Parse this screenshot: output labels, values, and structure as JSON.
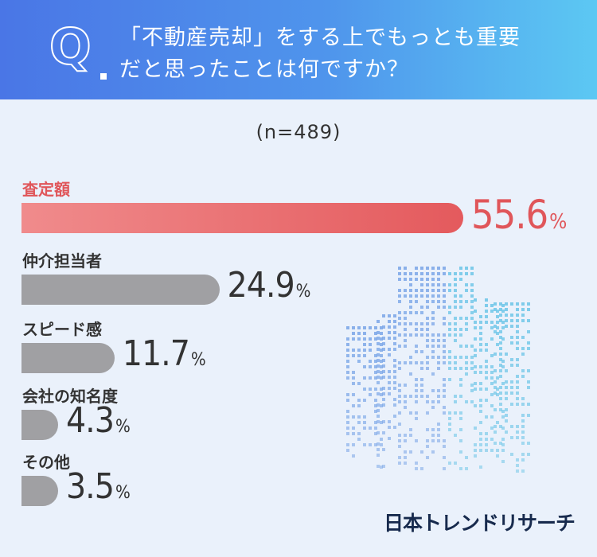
{
  "header": {
    "q_letter": "Q",
    "question_line1": "「不動産売却」をする上でもっとも重要",
    "question_line2": "だと思ったことは何ですか？"
  },
  "sample": "(n=489)",
  "chart_data": {
    "type": "bar",
    "orientation": "horizontal",
    "categories": [
      "査定額",
      "仲介担当者",
      "スピード感",
      "会社の知名度",
      "その他"
    ],
    "values": [
      55.6,
      24.9,
      11.7,
      4.3,
      3.5
    ],
    "value_labels": [
      "55.6",
      "24.9",
      "11.7",
      "4.3",
      "3.5"
    ],
    "unit": "%",
    "highlight_index": 0,
    "colors": {
      "highlight": "#e45a5d",
      "default": "#a0a0a3"
    }
  },
  "brand": "日本トレンドリサーチ"
}
